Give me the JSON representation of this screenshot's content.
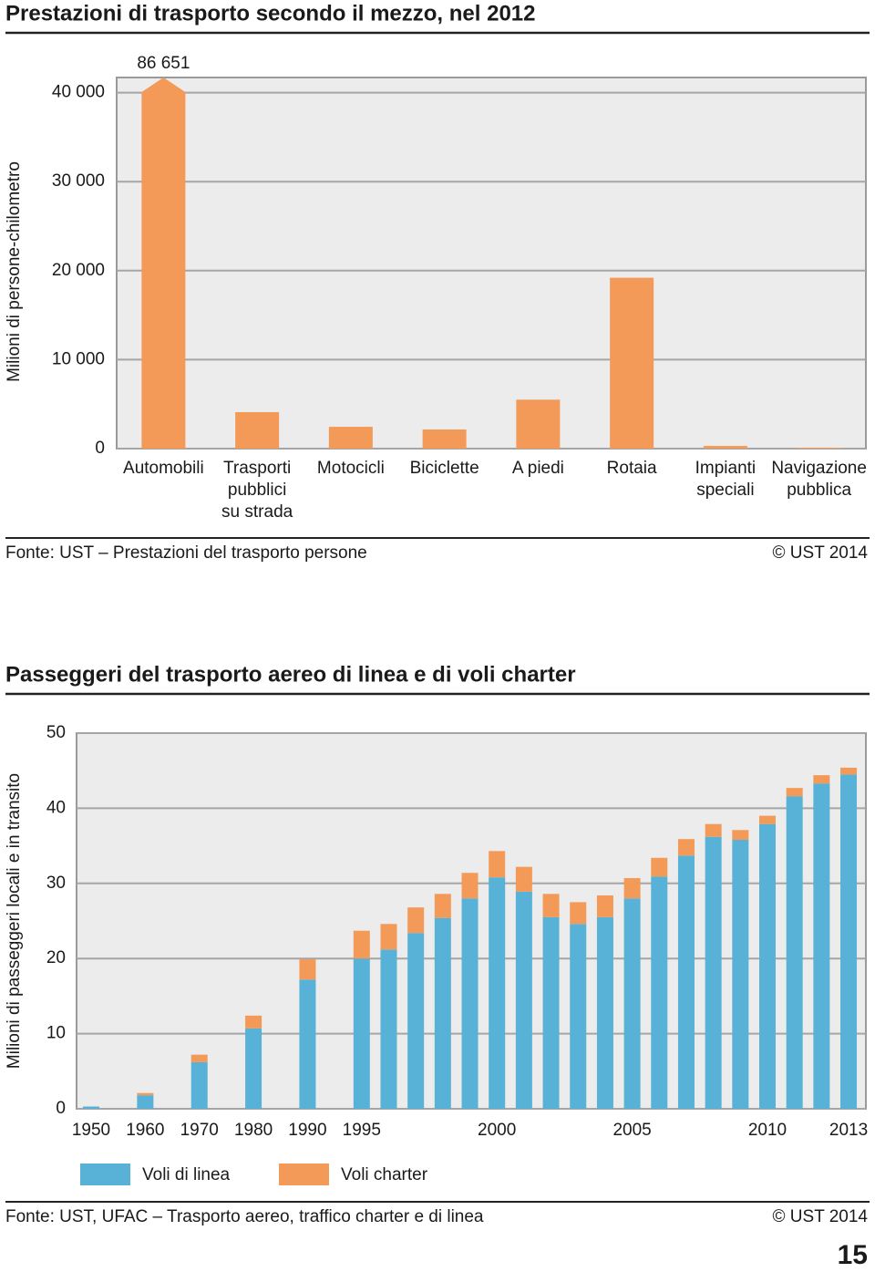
{
  "chart_data": [
    {
      "type": "bar",
      "title": "Prestazioni di trasporto secondo il mezzo, nel 2012",
      "y_label": "Milioni di persone-chilometro",
      "categories": [
        "Automobili",
        "Trasporti\npubblici\nsu strada",
        "Motocicli",
        "Biciclette",
        "A piedi",
        "Rotaia",
        "Impianti\nspeciali",
        "Navigazione\npubblica"
      ],
      "values": [
        86651,
        4100,
        2450,
        2150,
        5500,
        19200,
        300,
        100
      ],
      "value_labels": [
        "86 651",
        null,
        null,
        null,
        null,
        null,
        null,
        null
      ],
      "color": "#f39a58",
      "ylim": [
        0,
        41700
      ],
      "yticks": [
        0,
        {
          "value": 10000,
          "label": "10 000"
        },
        {
          "value": 20000,
          "label": "20 000"
        },
        {
          "value": 30000,
          "label": "30 000"
        },
        {
          "value": 40000,
          "label": "40 000"
        }
      ],
      "grid": true,
      "source": "Fonte: UST – Prestazioni del trasporto persone",
      "copyright": "© UST 2014"
    },
    {
      "type": "stacked_bar",
      "title": "Passeggeri del trasporto aereo di linea e di voli charter",
      "y_label": "Milioni di passeggeri locali e in transito",
      "categories": [
        "1950",
        "1960",
        "1970",
        "1980",
        "1990",
        "1995",
        null,
        null,
        null,
        null,
        "2000",
        null,
        null,
        null,
        null,
        "2005",
        null,
        null,
        null,
        null,
        "2010",
        null,
        null,
        "2013"
      ],
      "series": [
        {
          "name": "Voli di linea",
          "color": "#58b1d6",
          "values": [
            0.3,
            1.8,
            6.2,
            10.7,
            17.2,
            20.0,
            21.2,
            23.4,
            25.4,
            28.0,
            30.8,
            28.9,
            25.5,
            24.6,
            25.5,
            28.0,
            30.9,
            33.7,
            36.2,
            35.8,
            37.9,
            41.6,
            43.3,
            44.5
          ]
        },
        {
          "name": "Voli charter",
          "color": "#f39a58",
          "values": [
            0,
            0.3,
            1.0,
            1.7,
            2.7,
            3.7,
            3.4,
            3.4,
            3.2,
            3.4,
            3.5,
            3.3,
            3.1,
            2.9,
            2.9,
            2.7,
            2.5,
            2.2,
            1.7,
            1.3,
            1.1,
            1.1,
            1.1,
            0.9
          ]
        }
      ],
      "ylim": [
        0,
        50
      ],
      "yticks": [
        0,
        10,
        20,
        30,
        40,
        50
      ],
      "grid": true,
      "source": "Fonte: UST, UFAC – Trasporto aereo, traffico charter e di linea",
      "copyright": "© UST 2014"
    }
  ],
  "page_number": "15"
}
